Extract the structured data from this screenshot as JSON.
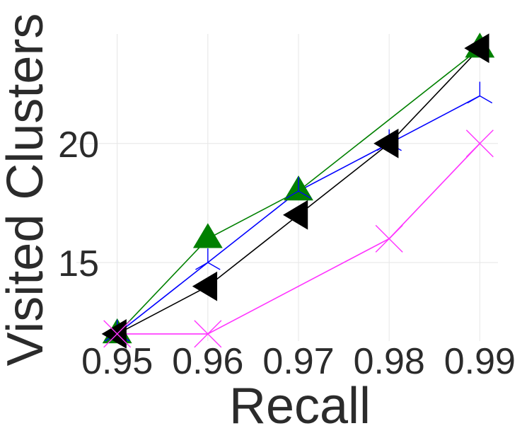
{
  "chart_data": {
    "type": "line",
    "xlabel": "Recall",
    "ylabel": "Visited Clusters",
    "xlim": [
      0.9455,
      0.992
    ],
    "ylim": [
      11.7,
      24.6
    ],
    "x_ticks": [
      "0.95",
      "0.96",
      "0.97",
      "0.98",
      "0.99"
    ],
    "y_ticks": [
      "15",
      "20"
    ],
    "grid": true,
    "legend": "none",
    "series": [
      {
        "color": "#008000",
        "marker": "triangle-up",
        "x": [
          0.95,
          0.96,
          0.97,
          0.99
        ],
        "y": [
          12,
          16,
          18,
          24
        ]
      },
      {
        "color": "#0000ff",
        "marker": "tri-up",
        "x": [
          0.95,
          0.96,
          0.97,
          0.98,
          0.99
        ],
        "y": [
          12,
          15,
          18,
          20,
          22
        ]
      },
      {
        "color": "#000000",
        "marker": "triangle-left",
        "x": [
          0.95,
          0.96,
          0.97,
          0.98,
          0.99
        ],
        "y": [
          12,
          14,
          17,
          20,
          24
        ]
      },
      {
        "color": "#ff33ff",
        "marker": "x",
        "x": [
          0.95,
          0.96,
          0.98,
          0.99
        ],
        "y": [
          12,
          12,
          16,
          20
        ]
      }
    ]
  }
}
